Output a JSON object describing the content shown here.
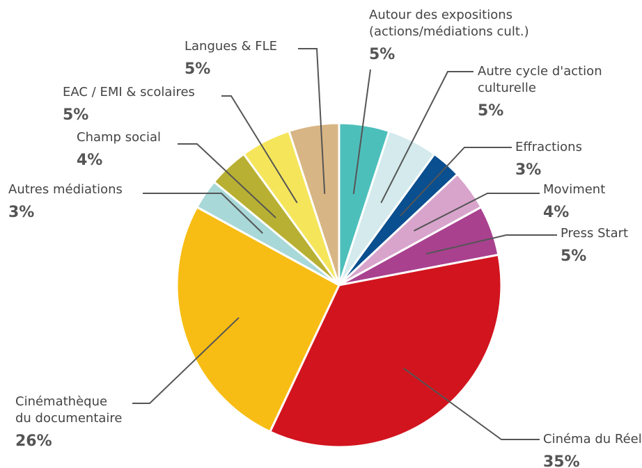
{
  "chart_data": {
    "type": "pie",
    "categories": [
      [
        "Autour des expositions",
        "(actions/médiations cult.)"
      ],
      [
        "Autre cycle d'action",
        "culturelle"
      ],
      [
        "Effractions"
      ],
      [
        "Moviment"
      ],
      [
        "Press Start"
      ],
      [
        "Cinéma du Réel"
      ],
      [
        "Cinémathèque",
        "du documentaire"
      ],
      [
        "Autres médiations"
      ],
      [
        "Champ social"
      ],
      [
        "EAC / EMI & scolaires"
      ],
      [
        "Langues & FLE"
      ]
    ],
    "values": [
      5,
      5,
      3,
      4,
      5,
      35,
      26,
      3,
      4,
      5,
      5
    ],
    "value_labels": [
      "5%",
      "5%",
      "3%",
      "4%",
      "5%",
      "35%",
      "26%",
      "3%",
      "4%",
      "5%",
      "5%"
    ],
    "colors": [
      "#4dbfbb",
      "#d4eaec",
      "#0a4f8f",
      "#d8a4cc",
      "#a9418f",
      "#d2141e",
      "#f8bd14",
      "#a8d8d8",
      "#b8b032",
      "#f5e55a",
      "#d8b584"
    ]
  }
}
